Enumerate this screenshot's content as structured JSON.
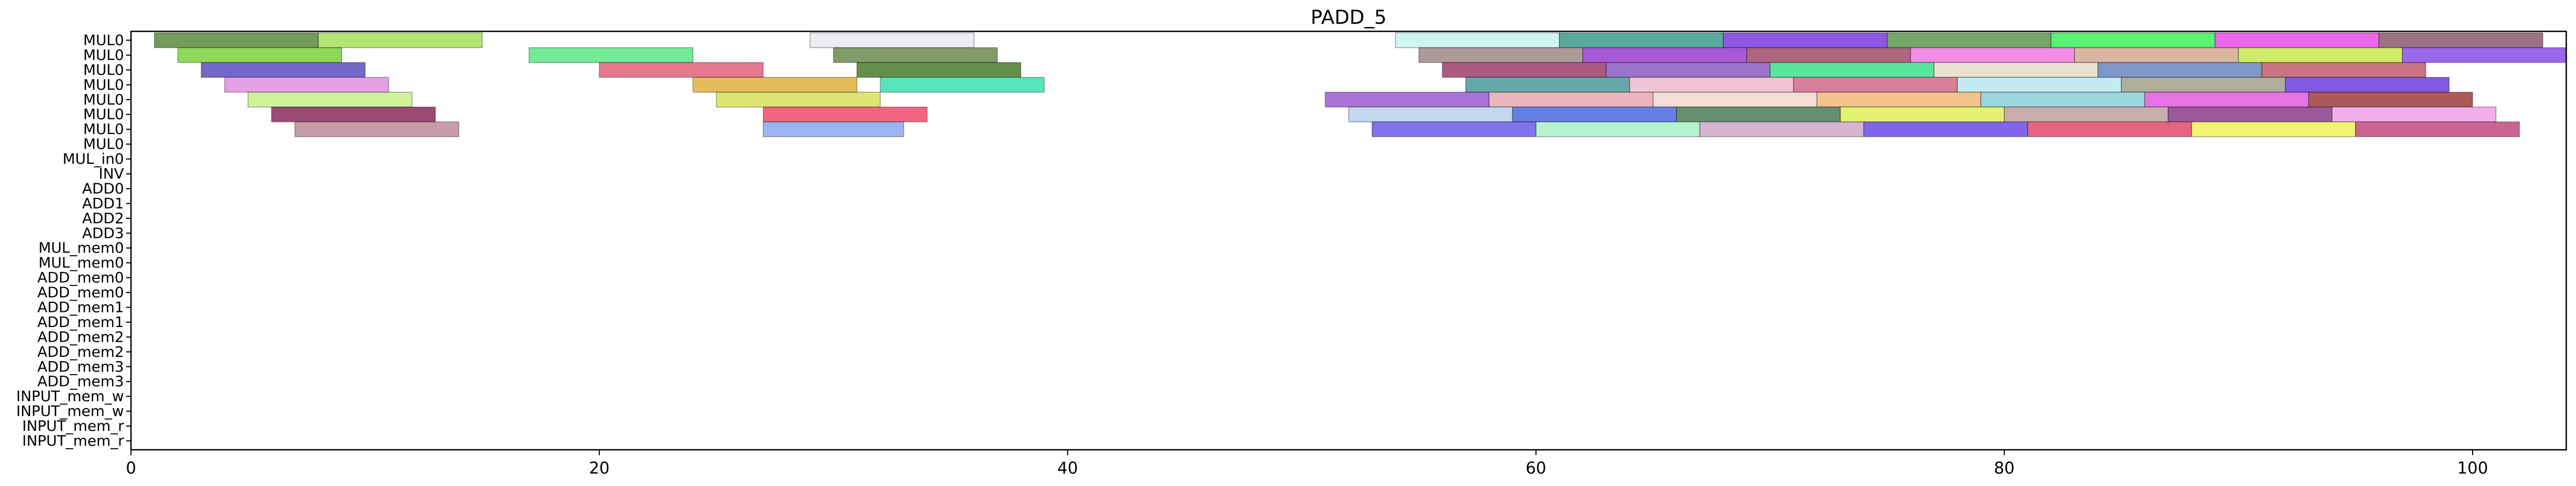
{
  "chart_data": {
    "type": "gantt",
    "title": "PADD_5",
    "xlim": [
      0,
      104
    ],
    "xticks": [
      0,
      20,
      40,
      60,
      80,
      100
    ],
    "rows": [
      "MUL0",
      "MUL0",
      "MUL0",
      "MUL0",
      "MUL0",
      "MUL0",
      "MUL0",
      "MUL0",
      "MUL_in0",
      "INV",
      "ADD0",
      "ADD1",
      "ADD2",
      "ADD3",
      "MUL_mem0",
      "MUL_mem0",
      "ADD_mem0",
      "ADD_mem0",
      "ADD_mem1",
      "ADD_mem1",
      "ADD_mem2",
      "ADD_mem2",
      "ADD_mem3",
      "ADD_mem3",
      "INPUT_mem_w",
      "INPUT_mem_w",
      "INPUT_mem_r",
      "INPUT_mem_r"
    ],
    "legend": "none",
    "grid": false,
    "tasks": [
      {
        "row": 0,
        "start": 1,
        "end": 8,
        "color": "#5a8a3c"
      },
      {
        "row": 0,
        "start": 8,
        "end": 15,
        "color": "#a6e05a"
      },
      {
        "row": 0,
        "start": 29,
        "end": 36,
        "color": "#e8eaf0"
      },
      {
        "row": 0,
        "start": 54,
        "end": 61,
        "color": "#c8f4f0"
      },
      {
        "row": 0,
        "start": 61,
        "end": 68,
        "color": "#3c9a8c"
      },
      {
        "row": 0,
        "start": 68,
        "end": 75,
        "color": "#7a3ce0"
      },
      {
        "row": 0,
        "start": 75,
        "end": 82,
        "color": "#5a9a4c"
      },
      {
        "row": 0,
        "start": 82,
        "end": 89,
        "color": "#3cf05a"
      },
      {
        "row": 0,
        "start": 89,
        "end": 96,
        "color": "#e84ce8"
      },
      {
        "row": 0,
        "start": 96,
        "end": 103,
        "color": "#8a5a6c"
      },
      {
        "row": 1,
        "start": 2,
        "end": 9,
        "color": "#7ad03c"
      },
      {
        "row": 1,
        "start": 17,
        "end": 24,
        "color": "#5ae886"
      },
      {
        "row": 1,
        "start": 30,
        "end": 37,
        "color": "#6a8a4c"
      },
      {
        "row": 1,
        "start": 55,
        "end": 62,
        "color": "#a08888"
      },
      {
        "row": 1,
        "start": 62,
        "end": 69,
        "color": "#9a3cd0"
      },
      {
        "row": 1,
        "start": 69,
        "end": 76,
        "color": "#a04a6a"
      },
      {
        "row": 1,
        "start": 76,
        "end": 83,
        "color": "#f07ae0"
      },
      {
        "row": 1,
        "start": 83,
        "end": 90,
        "color": "#d4a890"
      },
      {
        "row": 1,
        "start": 90,
        "end": 97,
        "color": "#c8e84c"
      },
      {
        "row": 1,
        "start": 97,
        "end": 104,
        "color": "#8a4ce8"
      },
      {
        "row": 2,
        "start": 3,
        "end": 10,
        "color": "#5a4cc0"
      },
      {
        "row": 2,
        "start": 20,
        "end": 27,
        "color": "#e0607a"
      },
      {
        "row": 2,
        "start": 31,
        "end": 38,
        "color": "#4a7a2c"
      },
      {
        "row": 2,
        "start": 56,
        "end": 63,
        "color": "#a03c6a"
      },
      {
        "row": 2,
        "start": 63,
        "end": 70,
        "color": "#8a5ac0"
      },
      {
        "row": 2,
        "start": 70,
        "end": 77,
        "color": "#3ce08a"
      },
      {
        "row": 2,
        "start": 77,
        "end": 84,
        "color": "#e8dcc8"
      },
      {
        "row": 2,
        "start": 84,
        "end": 91,
        "color": "#6a86c0"
      },
      {
        "row": 2,
        "start": 91,
        "end": 98,
        "color": "#c05a6a"
      },
      {
        "row": 3,
        "start": 4,
        "end": 11,
        "color": "#e090e0"
      },
      {
        "row": 3,
        "start": 24,
        "end": 31,
        "color": "#e0b03c"
      },
      {
        "row": 3,
        "start": 32,
        "end": 39,
        "color": "#3ce0b0"
      },
      {
        "row": 3,
        "start": 57,
        "end": 64,
        "color": "#4a9a9a"
      },
      {
        "row": 3,
        "start": 64,
        "end": 71,
        "color": "#f0b8c8"
      },
      {
        "row": 3,
        "start": 71,
        "end": 78,
        "color": "#d06a8a"
      },
      {
        "row": 3,
        "start": 78,
        "end": 85,
        "color": "#b8e8f0"
      },
      {
        "row": 3,
        "start": 85,
        "end": 92,
        "color": "#a0a08a"
      },
      {
        "row": 3,
        "start": 92,
        "end": 99,
        "color": "#6a3ce0"
      },
      {
        "row": 4,
        "start": 5,
        "end": 12,
        "color": "#c8f08a"
      },
      {
        "row": 4,
        "start": 25,
        "end": 32,
        "color": "#d8e05a"
      },
      {
        "row": 4,
        "start": 51,
        "end": 58,
        "color": "#9a5ad0"
      },
      {
        "row": 4,
        "start": 58,
        "end": 65,
        "color": "#e8a8b0"
      },
      {
        "row": 4,
        "start": 65,
        "end": 72,
        "color": "#f0d8d0"
      },
      {
        "row": 4,
        "start": 72,
        "end": 79,
        "color": "#f0b87a"
      },
      {
        "row": 4,
        "start": 79,
        "end": 86,
        "color": "#8ad0d8"
      },
      {
        "row": 4,
        "start": 86,
        "end": 93,
        "color": "#e05ae0"
      },
      {
        "row": 4,
        "start": 93,
        "end": 100,
        "color": "#a03c3c"
      },
      {
        "row": 5,
        "start": 6,
        "end": 13,
        "color": "#8a2c5a"
      },
      {
        "row": 5,
        "start": 27,
        "end": 34,
        "color": "#f04a6a"
      },
      {
        "row": 5,
        "start": 52,
        "end": 59,
        "color": "#b8d0f0"
      },
      {
        "row": 5,
        "start": 59,
        "end": 66,
        "color": "#4a6ae0"
      },
      {
        "row": 5,
        "start": 66,
        "end": 73,
        "color": "#4a7a5a"
      },
      {
        "row": 5,
        "start": 73,
        "end": 80,
        "color": "#e0f05a"
      },
      {
        "row": 5,
        "start": 80,
        "end": 87,
        "color": "#c0a0a0"
      },
      {
        "row": 5,
        "start": 87,
        "end": 94,
        "color": "#8a3c8a"
      },
      {
        "row": 5,
        "start": 94,
        "end": 101,
        "color": "#f0a0e8"
      },
      {
        "row": 6,
        "start": 7,
        "end": 14,
        "color": "#c08a9a"
      },
      {
        "row": 6,
        "start": 27,
        "end": 33,
        "color": "#8aa8f0"
      },
      {
        "row": 6,
        "start": 53,
        "end": 60,
        "color": "#6a5ae8"
      },
      {
        "row": 6,
        "start": 60,
        "end": 67,
        "color": "#a8f0c8"
      },
      {
        "row": 6,
        "start": 67,
        "end": 74,
        "color": "#d0a8c8"
      },
      {
        "row": 6,
        "start": 74,
        "end": 81,
        "color": "#6a4ae8"
      },
      {
        "row": 6,
        "start": 81,
        "end": 88,
        "color": "#e04a6a"
      },
      {
        "row": 6,
        "start": 88,
        "end": 95,
        "color": "#f0f05a"
      },
      {
        "row": 6,
        "start": 95,
        "end": 102,
        "color": "#c04a7a"
      }
    ]
  }
}
